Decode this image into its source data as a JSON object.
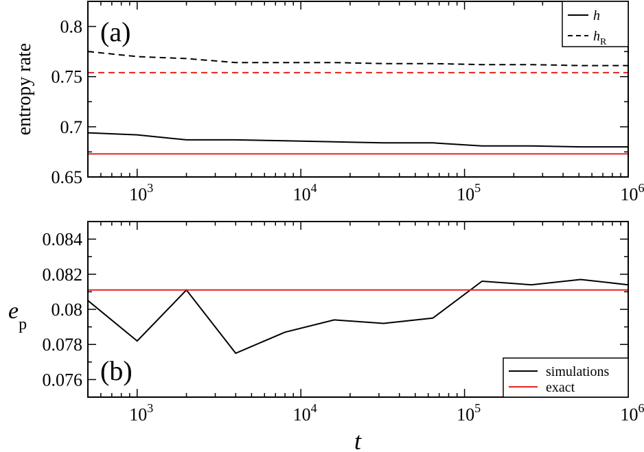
{
  "chart_data": [
    {
      "type": "line",
      "panel_label": "(a)",
      "ylabel": "entropy rate",
      "xlabel": "",
      "x_scale": "log",
      "xlim": [
        500,
        1000000
      ],
      "ylim": [
        0.65,
        0.825
      ],
      "yticks": [
        0.65,
        0.7,
        0.75,
        0.8
      ],
      "ytick_labels": [
        "0.65",
        "0.7",
        "0.75",
        "0.8"
      ],
      "xticks": [
        1000,
        10000,
        100000,
        1000000
      ],
      "xtick_labels": [
        {
          "base": "10",
          "exp": "3"
        },
        {
          "base": "10",
          "exp": "4"
        },
        {
          "base": "10",
          "exp": "5"
        },
        {
          "base": "10",
          "exp": "6"
        }
      ],
      "legend_position": "top-right",
      "legend": [
        {
          "base": "h",
          "sub": "",
          "dash": "solid",
          "color": "#000000"
        },
        {
          "base": "h",
          "sub": "R",
          "dash": "dashed",
          "color": "#000000"
        }
      ],
      "series": [
        {
          "key": "h-sim",
          "color": "#000000",
          "dash": "solid",
          "x": [
            500,
            1000,
            2000,
            4000,
            8000,
            16000,
            32000,
            64000,
            128000,
            256000,
            512000,
            1000000
          ],
          "y": [
            0.694,
            0.692,
            0.687,
            0.687,
            0.686,
            0.685,
            0.684,
            0.684,
            0.681,
            0.681,
            0.68,
            0.68
          ]
        },
        {
          "key": "hR-sim",
          "color": "#000000",
          "dash": "dashed",
          "x": [
            500,
            1000,
            2000,
            4000,
            8000,
            16000,
            32000,
            64000,
            128000,
            256000,
            512000,
            1000000
          ],
          "y": [
            0.775,
            0.77,
            0.768,
            0.764,
            0.764,
            0.764,
            0.763,
            0.763,
            0.762,
            0.762,
            0.761,
            0.761
          ]
        },
        {
          "key": "h-exact",
          "color": "#e8201c",
          "dash": "solid",
          "x": [
            500,
            1000000
          ],
          "y": [
            0.673,
            0.673
          ]
        },
        {
          "key": "hR-exact",
          "color": "#e8201c",
          "dash": "dashed",
          "x": [
            500,
            1000000
          ],
          "y": [
            0.754,
            0.754
          ]
        }
      ]
    },
    {
      "type": "line",
      "panel_label": "(b)",
      "ylabel": {
        "base": "e",
        "sub": "p"
      },
      "xlabel": "t",
      "x_scale": "log",
      "xlim": [
        500,
        1000000
      ],
      "ylim": [
        0.075,
        0.085
      ],
      "yticks": [
        0.076,
        0.078,
        0.08,
        0.082,
        0.084
      ],
      "ytick_labels": [
        "0.076",
        "0.078",
        "0.08",
        "0.082",
        "0.084"
      ],
      "xticks": [
        1000,
        10000,
        100000,
        1000000
      ],
      "xtick_labels": [
        {
          "base": "10",
          "exp": "3"
        },
        {
          "base": "10",
          "exp": "4"
        },
        {
          "base": "10",
          "exp": "5"
        },
        {
          "base": "10",
          "exp": "6"
        }
      ],
      "legend_position": "bottom-right",
      "legend": [
        {
          "base": "simulations",
          "sub": "",
          "dash": "solid",
          "color": "#000000"
        },
        {
          "base": "exact",
          "sub": "",
          "dash": "solid",
          "color": "#e8201c"
        }
      ],
      "series": [
        {
          "key": "simulations",
          "color": "#000000",
          "dash": "solid",
          "x": [
            500,
            1000,
            2000,
            4000,
            8000,
            16000,
            32000,
            64000,
            128000,
            256000,
            512000,
            1000000
          ],
          "y": [
            0.0805,
            0.0782,
            0.0811,
            0.0775,
            0.0787,
            0.0794,
            0.0792,
            0.0795,
            0.0816,
            0.0814,
            0.0817,
            0.0814
          ]
        },
        {
          "key": "exact",
          "color": "#e8201c",
          "dash": "solid",
          "x": [
            500,
            1000000
          ],
          "y": [
            0.0811,
            0.0811
          ]
        }
      ]
    }
  ]
}
